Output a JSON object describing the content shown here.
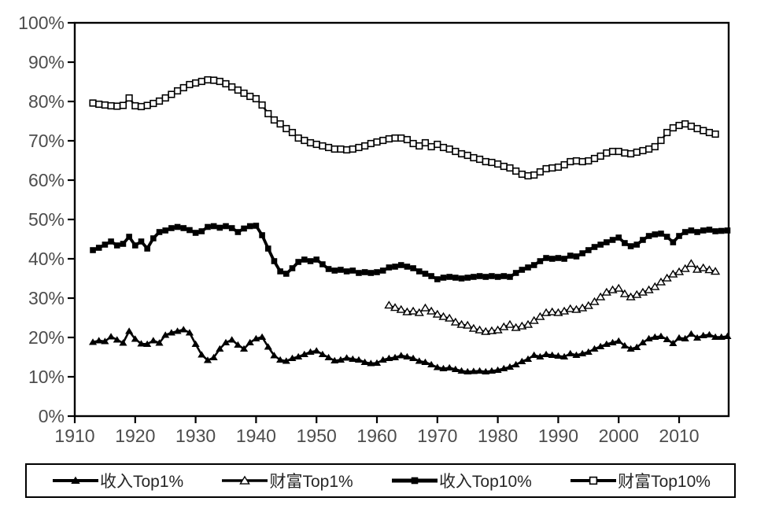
{
  "chart_data": {
    "type": "line",
    "title": "",
    "xlabel": "",
    "ylabel": "",
    "grid": false,
    "background": "#ffffff",
    "line_color": "#000000",
    "tick_label_color": "#4d4d4d",
    "legend_text_color": "#262626",
    "legend_position": "bottom",
    "xlim": [
      1910,
      2018.2
    ],
    "ylim": [
      0,
      100
    ],
    "xticks": [
      1910,
      1920,
      1930,
      1940,
      1950,
      1960,
      1970,
      1980,
      1990,
      2000,
      2010
    ],
    "xtick_labels": [
      "1910",
      "1920",
      "1930",
      "1940",
      "1950",
      "1960",
      "1970",
      "1980",
      "1990",
      "2000",
      "2010"
    ],
    "yticks": [
      0,
      10,
      20,
      30,
      40,
      50,
      60,
      70,
      80,
      90,
      100
    ],
    "ytick_labels": [
      "0%",
      "10%",
      "20%",
      "30%",
      "40%",
      "50%",
      "60%",
      "70%",
      "80%",
      "90%",
      "100%"
    ],
    "series": [
      {
        "key": "income-top1",
        "name": "收入Top1%",
        "marker": "filled-triangle",
        "start_year": 1913,
        "values": [
          18.8,
          19.2,
          19.0,
          20.2,
          19.4,
          18.6,
          21.6,
          19.6,
          18.4,
          18.3,
          19.2,
          18.6,
          20.6,
          21.2,
          21.6,
          22.0,
          21.2,
          18.3,
          15.6,
          14.2,
          14.9,
          17.1,
          18.7,
          19.4,
          18.1,
          17.1,
          18.7,
          19.7,
          20.1,
          17.6,
          15.4,
          14.3,
          14.0,
          14.7,
          15.1,
          15.7,
          16.3,
          16.6,
          15.7,
          14.9,
          14.1,
          14.3,
          14.8,
          14.5,
          14.3,
          13.7,
          13.4,
          13.5,
          14.3,
          14.7,
          14.9,
          15.4,
          15.1,
          14.7,
          14.0,
          13.7,
          13.1,
          12.4,
          12.1,
          12.3,
          11.9,
          11.5,
          11.3,
          11.4,
          11.5,
          11.3,
          11.5,
          11.7,
          12.1,
          12.5,
          13.1,
          13.9,
          14.5,
          15.5,
          15.1,
          15.7,
          15.5,
          15.3,
          15.1,
          15.9,
          15.5,
          15.9,
          16.3,
          17.1,
          17.7,
          18.3,
          18.7,
          19.1,
          17.9,
          17.1,
          17.5,
          18.7,
          19.7,
          20.1,
          20.3,
          19.5,
          18.5,
          19.9,
          19.7,
          20.9,
          19.9,
          20.5,
          20.7,
          20.1,
          20.1,
          20.3
        ]
      },
      {
        "key": "wealth-top1",
        "name": "财富Top1%",
        "marker": "open-triangle",
        "start_year": 1962,
        "values": [
          28.2,
          27.6,
          27.1,
          26.5,
          26.7,
          26.3,
          27.5,
          26.7,
          25.9,
          25.3,
          24.9,
          23.9,
          23.3,
          23.1,
          22.3,
          21.9,
          21.5,
          21.7,
          21.9,
          22.7,
          23.3,
          22.5,
          22.9,
          23.3,
          24.3,
          25.3,
          26.3,
          26.5,
          26.3,
          26.7,
          27.3,
          27.1,
          27.5,
          28.1,
          29.1,
          30.3,
          31.5,
          32.1,
          32.5,
          31.1,
          30.3,
          30.9,
          31.5,
          32.1,
          32.9,
          34.1,
          35.1,
          36.1,
          36.7,
          37.5,
          38.8,
          37.3,
          37.7,
          37.2,
          36.8
        ]
      },
      {
        "key": "income-top10",
        "name": "收入Top10%",
        "marker": "filled-square",
        "start_year": 1913,
        "values": [
          42.2,
          42.8,
          43.6,
          44.4,
          43.4,
          43.8,
          45.6,
          43.4,
          44.4,
          42.6,
          45.2,
          46.8,
          47.2,
          47.8,
          48.1,
          47.8,
          47.3,
          46.6,
          47.0,
          48.1,
          48.3,
          47.9,
          48.3,
          47.8,
          46.8,
          47.7,
          48.3,
          48.4,
          46.0,
          42.6,
          39.4,
          36.8,
          36.2,
          37.6,
          39.2,
          39.8,
          39.4,
          39.8,
          38.6,
          37.4,
          37.0,
          37.2,
          36.8,
          37.0,
          36.4,
          36.6,
          36.4,
          36.6,
          37.0,
          37.8,
          38.0,
          38.4,
          38.0,
          37.6,
          36.8,
          36.2,
          35.6,
          34.8,
          35.2,
          35.4,
          35.2,
          35.0,
          35.2,
          35.4,
          35.6,
          35.4,
          35.6,
          35.4,
          35.6,
          35.4,
          36.4,
          37.2,
          37.8,
          38.4,
          39.4,
          40.2,
          40.0,
          40.2,
          40.0,
          40.8,
          40.6,
          41.4,
          42.2,
          43.0,
          43.6,
          44.2,
          44.8,
          45.4,
          44.0,
          43.2,
          43.6,
          44.8,
          45.8,
          46.2,
          46.4,
          45.6,
          44.2,
          45.8,
          46.8,
          47.2,
          46.8,
          47.2,
          47.4,
          47.0,
          47.1,
          47.2
        ]
      },
      {
        "key": "wealth-top10",
        "name": "财富Top10%",
        "marker": "open-square",
        "start_year": 1913,
        "values": [
          79.6,
          79.3,
          79.1,
          78.9,
          78.8,
          79.0,
          80.9,
          78.9,
          78.7,
          79.0,
          79.5,
          80.1,
          80.9,
          81.8,
          82.7,
          83.5,
          84.3,
          84.7,
          85.1,
          85.5,
          85.4,
          85.1,
          84.5,
          83.7,
          82.9,
          82.1,
          81.3,
          80.7,
          79.1,
          76.9,
          75.3,
          74.3,
          73.1,
          72.1,
          70.7,
          70.1,
          69.5,
          69.1,
          68.7,
          68.3,
          67.9,
          67.9,
          67.7,
          67.9,
          68.3,
          68.7,
          69.3,
          69.7,
          70.1,
          70.5,
          70.7,
          70.7,
          70.3,
          69.3,
          68.7,
          69.5,
          68.5,
          69.1,
          68.3,
          67.9,
          67.3,
          66.7,
          66.3,
          65.7,
          65.3,
          64.7,
          64.5,
          64.1,
          63.5,
          63.1,
          62.3,
          61.5,
          61.1,
          61.3,
          62.1,
          62.9,
          63.1,
          63.3,
          63.9,
          64.7,
          64.9,
          64.7,
          64.9,
          65.5,
          66.1,
          66.9,
          67.3,
          67.3,
          66.9,
          66.7,
          67.1,
          67.5,
          67.9,
          68.5,
          70.1,
          72.1,
          73.3,
          73.9,
          74.3,
          73.7,
          73.1,
          72.6,
          72.1,
          71.7
        ]
      }
    ]
  }
}
